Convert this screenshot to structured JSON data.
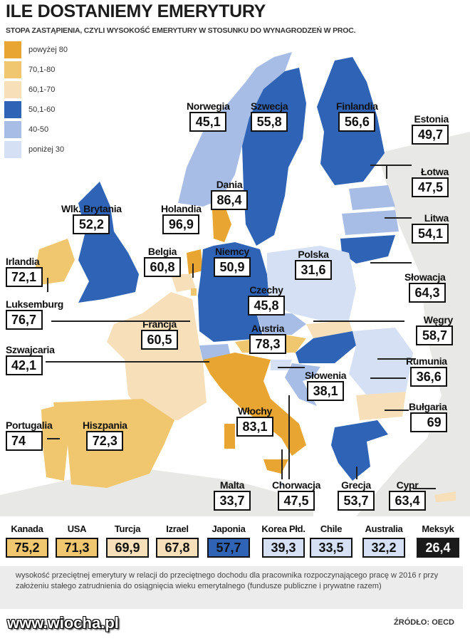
{
  "title": "ILE DOSTANIEMY EMERYTURY",
  "subtitle": "STOPA ZASTĄPIENIA, CZYLI WYSOKOŚĆ EMERYTURY W STOSUNKU DO WYNAGRODZEŃ W PROC.",
  "colors": {
    "above80": "#e8a531",
    "70_80": "#f0c76e",
    "60_70": "#f6dfb9",
    "50_60": "#2f63b5",
    "40_50": "#a7bde6",
    "below30": "#d5e0f4",
    "nonEU": "#e8e8e6",
    "sea": "#ffffff"
  },
  "legend": [
    {
      "label": "powyżej 80",
      "color": "#e8a531"
    },
    {
      "label": "70,1-80",
      "color": "#f0c76e"
    },
    {
      "label": "60,1-70",
      "color": "#f6dfb9"
    },
    {
      "label": "50,1-60",
      "color": "#2f63b5"
    },
    {
      "label": "40-50",
      "color": "#a7bde6"
    },
    {
      "label": "poniżej 30",
      "color": "#d5e0f4"
    }
  ],
  "countries": {
    "norwegia": {
      "name": "Norwegia",
      "value": "45,1"
    },
    "szwecja": {
      "name": "Szwecja",
      "value": "55,8"
    },
    "finlandia": {
      "name": "Finlandia",
      "value": "56,6"
    },
    "estonia": {
      "name": "Estonia",
      "value": "49,7"
    },
    "dania": {
      "name": "Dania",
      "value": "86,4"
    },
    "lotwa": {
      "name": "Łotwa",
      "value": "47,5"
    },
    "wlk_brytania": {
      "name": "Wlk. Brytania",
      "value": "52,2"
    },
    "holandia": {
      "name": "Holandia",
      "value": "96,9"
    },
    "litwa": {
      "name": "Litwa",
      "value": "54,1"
    },
    "irlandia": {
      "name": "Irlandia",
      "value": "72,1"
    },
    "belgia": {
      "name": "Belgia",
      "value": "60,8"
    },
    "niemcy": {
      "name": "Niemcy",
      "value": "50,9"
    },
    "polska": {
      "name": "Polska",
      "value": "31,6"
    },
    "slowacja": {
      "name": "Słowacja",
      "value": "64,3"
    },
    "luksemburg": {
      "name": "Luksemburg",
      "value": "76,7"
    },
    "czechy": {
      "name": "Czechy",
      "value": "45,8"
    },
    "wegry": {
      "name": "Węgry",
      "value": "58,7"
    },
    "francja": {
      "name": "Francja",
      "value": "60,5"
    },
    "austria": {
      "name": "Austria",
      "value": "78,3"
    },
    "szwajcaria": {
      "name": "Szwajcaria",
      "value": "42,1"
    },
    "rumunia": {
      "name": "Rumunia",
      "value": "36,6"
    },
    "slowenia": {
      "name": "Słowenia",
      "value": "38,1"
    },
    "bulgaria": {
      "name": "Bułgaria",
      "value": "69"
    },
    "portugalia": {
      "name": "Portugalia",
      "value": "74"
    },
    "hiszpania": {
      "name": "Hiszpania",
      "value": "72,3"
    },
    "wlochy": {
      "name": "Włochy",
      "value": "83,1"
    },
    "malta": {
      "name": "Malta",
      "value": "33,7"
    },
    "chorwacja": {
      "name": "Chorwacja",
      "value": "47,5"
    },
    "grecja": {
      "name": "Grecja",
      "value": "53,7"
    },
    "cypr": {
      "name": "Cypr",
      "value": "63,4"
    }
  },
  "others": [
    {
      "name": "Kanada",
      "value": "75,2",
      "color": "#f0c76e",
      "text": "#111111"
    },
    {
      "name": "USA",
      "value": "71,3",
      "color": "#f0c76e",
      "text": "#111111"
    },
    {
      "name": "Turcja",
      "value": "69,9",
      "color": "#f6dfb9",
      "text": "#111111"
    },
    {
      "name": "Izrael",
      "value": "67,8",
      "color": "#f6dfb9",
      "text": "#111111"
    },
    {
      "name": "Japonia",
      "value": "57,7",
      "color": "#2f63b5",
      "text": "#111111"
    },
    {
      "name": "Korea Płd.",
      "value": "39,3",
      "color": "#d5e0f4",
      "text": "#111111"
    },
    {
      "name": "Chile",
      "value": "33,5",
      "color": "#d5e0f4",
      "text": "#111111"
    },
    {
      "name": "Australia",
      "value": "32,2",
      "color": "#d5e0f4",
      "text": "#111111"
    },
    {
      "name": "Meksyk",
      "value": "26,4",
      "color": "#1a1a1a",
      "text": "#ffffff"
    }
  ],
  "footnote": "wysokość przeciętnej emerytury w relacji do przeciętnego dochodu dla pracownika rozpoczynającego pracę w 2016 r przy założeniu stałego zatrudnienia do osiągnięcia wieku emerytalnego (fundusze publiczne i prywatne razem)",
  "source": "ŹRÓDŁO: OECD",
  "watermark": "www.wiocha.pl"
}
